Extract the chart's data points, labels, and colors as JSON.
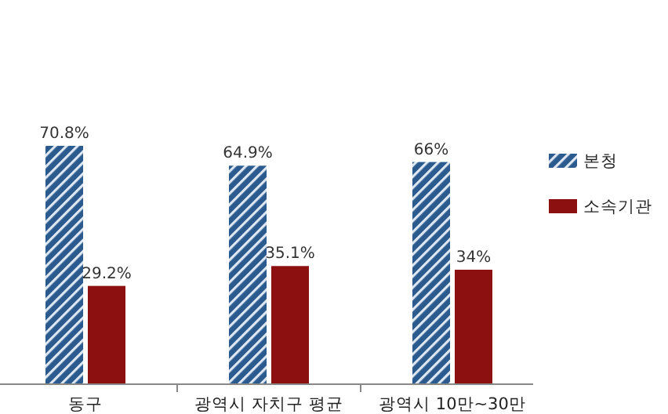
{
  "chart_data": {
    "type": "bar",
    "categories": [
      "동구",
      "광역시 자치구 평균",
      "광역시 10만~30만"
    ],
    "series": [
      {
        "name": "본청",
        "color": "#2b5b8e",
        "values": [
          70.8,
          64.9,
          66
        ],
        "value_labels": [
          "70.8%",
          "64.9%",
          "66%"
        ]
      },
      {
        "name": "소속기관",
        "color": "#8c1010",
        "values": [
          29.2,
          35.1,
          34
        ],
        "value_labels": [
          "29.2%",
          "35.1%",
          "34%"
        ]
      }
    ],
    "legend": "right"
  }
}
